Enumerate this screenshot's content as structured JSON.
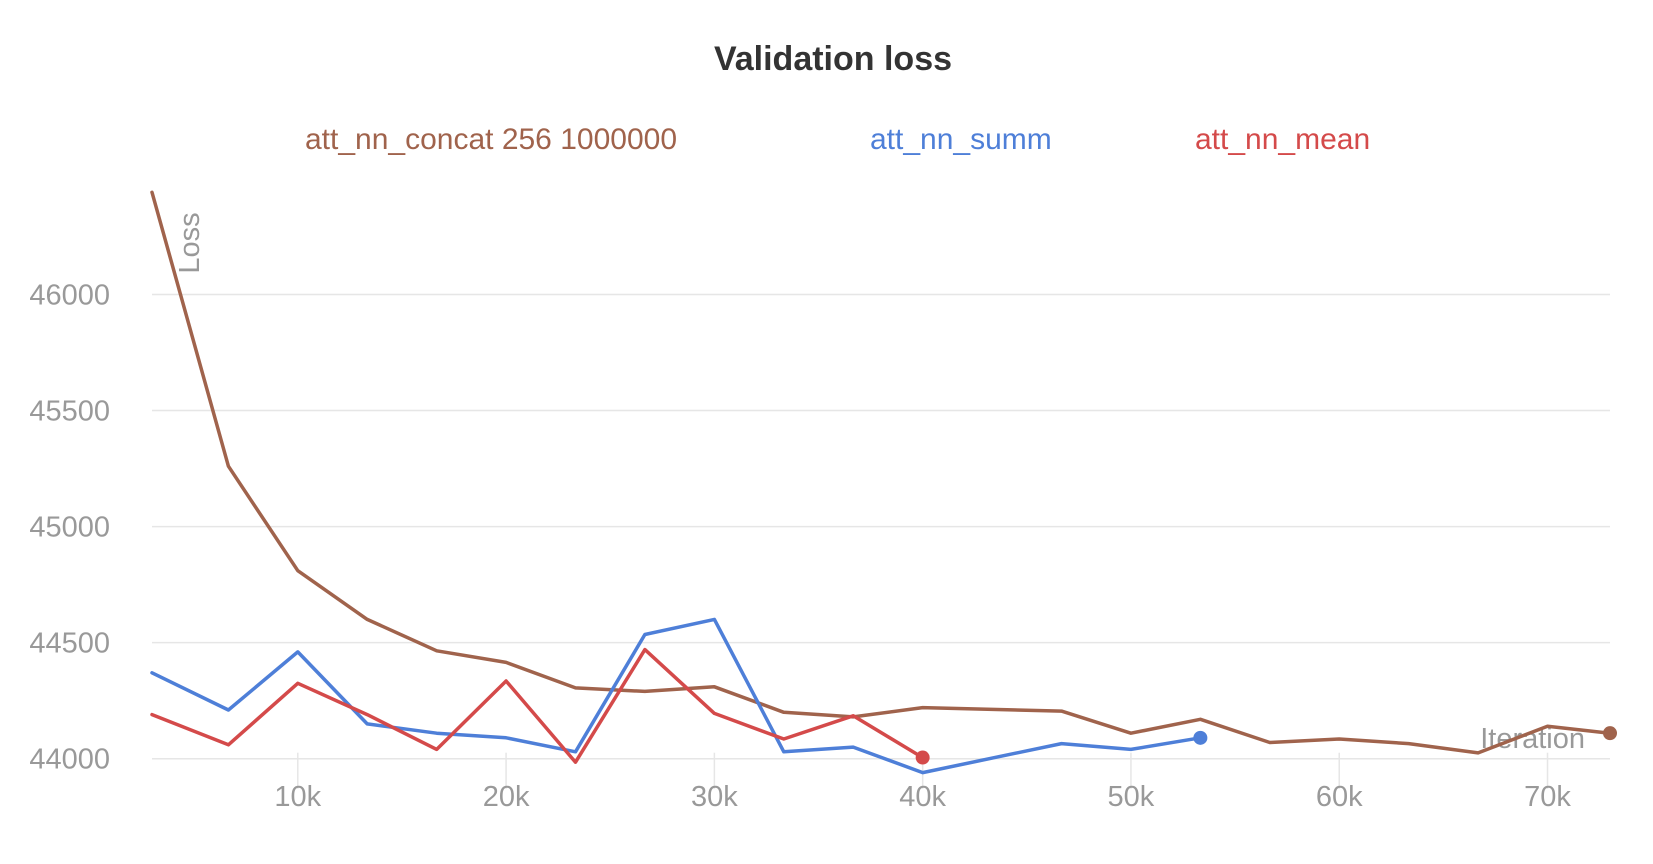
{
  "chart_data": {
    "type": "line",
    "title": "Validation loss",
    "xlabel": "Iteration",
    "ylabel": "Loss",
    "xlim": [
      3000,
      73000
    ],
    "ylim": [
      43960,
      46450
    ],
    "x_ticks": [
      10000,
      20000,
      30000,
      40000,
      50000,
      60000,
      70000
    ],
    "x_tick_labels": [
      "10k",
      "20k",
      "30k",
      "40k",
      "50k",
      "60k",
      "70k"
    ],
    "y_ticks": [
      44000,
      44500,
      45000,
      45500,
      46000
    ],
    "y_tick_labels": [
      "44000",
      "44500",
      "45000",
      "45500",
      "46000"
    ],
    "grid": true,
    "legend_position": "top",
    "series": [
      {
        "name": "att_nn_concat 256 1000000",
        "color": "#a0634c",
        "x": [
          3000,
          6667,
          10000,
          13333,
          16667,
          20000,
          23333,
          26667,
          30000,
          33333,
          36667,
          40000,
          46667,
          50000,
          53333,
          56667,
          60000,
          63333,
          66667,
          70000,
          73000
        ],
        "y": [
          46440,
          45260,
          44810,
          44600,
          44465,
          44415,
          44305,
          44290,
          44310,
          44200,
          44180,
          44220,
          44205,
          44110,
          44170,
          44070,
          44085,
          44065,
          44025,
          44140,
          44110
        ]
      },
      {
        "name": "att_nn_summ",
        "color": "#4e7fd8",
        "x": [
          3000,
          6667,
          10000,
          13333,
          16667,
          20000,
          23333,
          26667,
          30000,
          33333,
          36667,
          40000,
          46667,
          50000,
          53333
        ],
        "y": [
          44370,
          44210,
          44460,
          44150,
          44110,
          44090,
          44030,
          44535,
          44600,
          44030,
          44050,
          43940,
          44065,
          44040,
          44090
        ]
      },
      {
        "name": "att_nn_mean",
        "color": "#d44a4a",
        "x": [
          3000,
          6667,
          10000,
          13333,
          16667,
          20000,
          23333,
          26667,
          30000,
          33333,
          36667,
          40000
        ],
        "y": [
          44190,
          44060,
          44325,
          44190,
          44040,
          44335,
          43985,
          44470,
          44195,
          44085,
          44185,
          44005
        ]
      }
    ]
  }
}
